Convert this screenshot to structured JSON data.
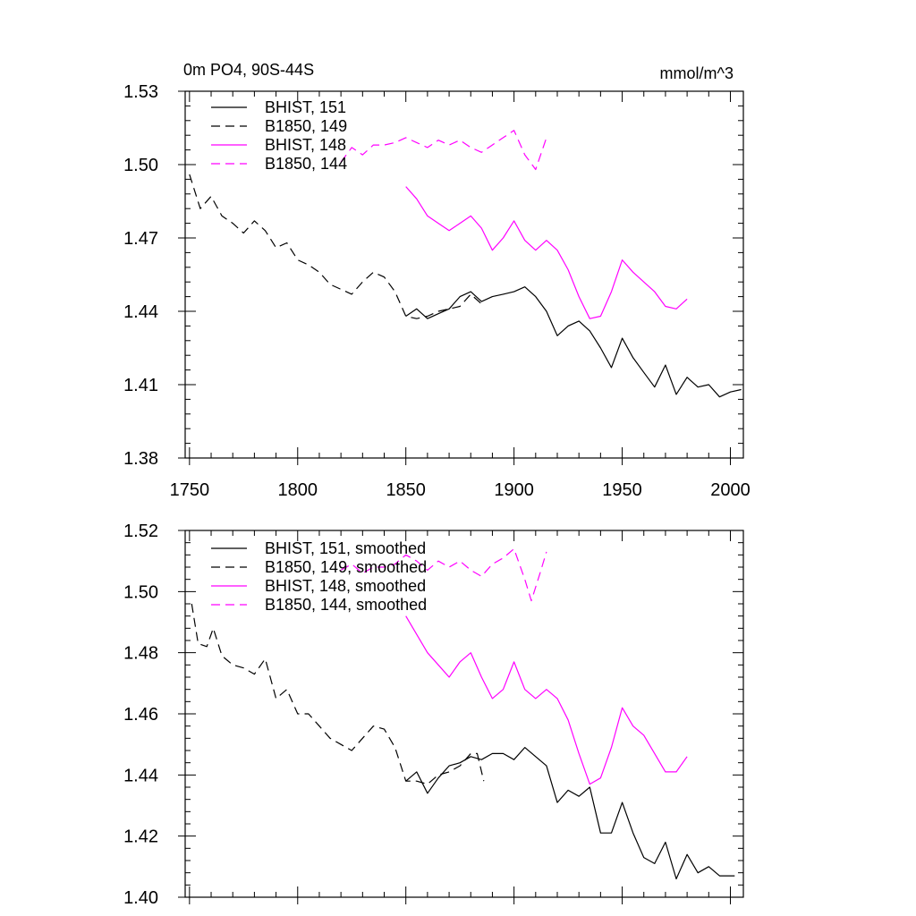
{
  "chart_data": [
    {
      "type": "line",
      "title_left": "0m PO4, 90S-44S",
      "title_right": "mmol/m^3",
      "xlim": [
        1748,
        2006
      ],
      "ylim": [
        1.38,
        1.53
      ],
      "xticks": [
        1750,
        1800,
        1850,
        1900,
        1950,
        2000
      ],
      "yticks": [
        1.38,
        1.41,
        1.44,
        1.47,
        1.5,
        1.53
      ],
      "ytick_labels": [
        "1.38",
        "1.41",
        "1.44",
        "1.47",
        "1.50",
        "1.53"
      ],
      "legend_position": "top-left",
      "series": [
        {
          "name": "BHIST, 151",
          "color": "#000000",
          "dash": "solid",
          "x": [
            1850,
            1855,
            1860,
            1865,
            1870,
            1875,
            1880,
            1885,
            1890,
            1895,
            1900,
            1905,
            1910,
            1915,
            1920,
            1925,
            1930,
            1935,
            1940,
            1945,
            1950,
            1955,
            1960,
            1965,
            1970,
            1975,
            1980,
            1985,
            1990,
            1995,
            2000,
            2005
          ],
          "y": [
            1.438,
            1.441,
            1.437,
            1.439,
            1.441,
            1.446,
            1.448,
            1.444,
            1.446,
            1.447,
            1.448,
            1.45,
            1.446,
            1.44,
            1.43,
            1.434,
            1.436,
            1.432,
            1.425,
            1.417,
            1.429,
            1.421,
            1.415,
            1.409,
            1.418,
            1.406,
            1.413,
            1.409,
            1.41,
            1.405,
            1.407,
            1.408
          ]
        },
        {
          "name": "B1850, 149",
          "color": "#000000",
          "dash": "dashed",
          "x": [
            1750,
            1755,
            1760,
            1765,
            1770,
            1775,
            1780,
            1785,
            1790,
            1795,
            1800,
            1805,
            1810,
            1815,
            1820,
            1825,
            1830,
            1835,
            1840,
            1845,
            1850,
            1855,
            1860,
            1865,
            1870,
            1875,
            1880,
            1885
          ],
          "y": [
            1.496,
            1.482,
            1.487,
            1.479,
            1.476,
            1.472,
            1.477,
            1.473,
            1.466,
            1.468,
            1.461,
            1.459,
            1.456,
            1.451,
            1.449,
            1.447,
            1.452,
            1.456,
            1.454,
            1.448,
            1.438,
            1.437,
            1.438,
            1.44,
            1.441,
            1.442,
            1.447,
            1.443
          ]
        },
        {
          "name": "BHIST, 148",
          "color": "#ff00ff",
          "dash": "solid",
          "x": [
            1850,
            1855,
            1860,
            1865,
            1870,
            1875,
            1880,
            1885,
            1890,
            1895,
            1900,
            1905,
            1910,
            1915,
            1920,
            1925,
            1930,
            1935,
            1940,
            1945,
            1950,
            1955,
            1960,
            1965,
            1970,
            1975,
            1980
          ],
          "y": [
            1.491,
            1.486,
            1.479,
            1.476,
            1.473,
            1.476,
            1.479,
            1.474,
            1.465,
            1.47,
            1.477,
            1.469,
            1.465,
            1.469,
            1.465,
            1.457,
            1.446,
            1.437,
            1.438,
            1.448,
            1.461,
            1.456,
            1.452,
            1.448,
            1.442,
            1.441,
            1.445
          ]
        },
        {
          "name": "B1850, 144",
          "color": "#ff00ff",
          "dash": "dashed",
          "x": [
            1820,
            1825,
            1830,
            1835,
            1840,
            1845,
            1850,
            1855,
            1860,
            1865,
            1870,
            1875,
            1880,
            1885,
            1890,
            1895,
            1900,
            1905,
            1910,
            1915
          ],
          "y": [
            1.501,
            1.507,
            1.504,
            1.508,
            1.508,
            1.509,
            1.511,
            1.509,
            1.507,
            1.51,
            1.508,
            1.51,
            1.507,
            1.505,
            1.508,
            1.511,
            1.514,
            1.504,
            1.498,
            1.511
          ]
        }
      ]
    },
    {
      "type": "line",
      "xlim": [
        1748,
        2006
      ],
      "ylim": [
        1.4,
        1.52
      ],
      "xticks": [
        1750,
        1800,
        1850,
        1900,
        1950,
        2000
      ],
      "yticks": [
        1.4,
        1.42,
        1.44,
        1.46,
        1.48,
        1.5,
        1.52
      ],
      "ytick_labels": [
        "1.40",
        "1.42",
        "1.44",
        "1.46",
        "1.48",
        "1.50",
        "1.52"
      ],
      "legend_position": "top-left",
      "series": [
        {
          "name": "BHIST, 151, smoothed",
          "color": "#000000",
          "dash": "solid",
          "x": [
            1850,
            1855,
            1860,
            1865,
            1870,
            1875,
            1880,
            1885,
            1890,
            1895,
            1900,
            1905,
            1910,
            1915,
            1920,
            1925,
            1930,
            1935,
            1940,
            1945,
            1950,
            1955,
            1960,
            1965,
            1970,
            1975,
            1980,
            1985,
            1990,
            1995,
            2000,
            2002
          ],
          "y": [
            1.438,
            1.441,
            1.434,
            1.439,
            1.443,
            1.444,
            1.446,
            1.445,
            1.447,
            1.447,
            1.445,
            1.449,
            1.446,
            1.443,
            1.431,
            1.435,
            1.433,
            1.436,
            1.421,
            1.421,
            1.431,
            1.421,
            1.413,
            1.411,
            1.418,
            1.406,
            1.414,
            1.408,
            1.41,
            1.407,
            1.407,
            1.407
          ]
        },
        {
          "name": "B1850, 149, smoothed",
          "color": "#000000",
          "dash": "dashed",
          "x": [
            1751,
            1754,
            1758,
            1761,
            1765,
            1770,
            1775,
            1780,
            1785,
            1790,
            1795,
            1800,
            1805,
            1810,
            1815,
            1820,
            1825,
            1830,
            1835,
            1840,
            1845,
            1850,
            1855,
            1860,
            1865,
            1870,
            1875,
            1880,
            1883,
            1886
          ],
          "y": [
            1.496,
            1.483,
            1.482,
            1.488,
            1.479,
            1.476,
            1.475,
            1.473,
            1.478,
            1.465,
            1.468,
            1.46,
            1.46,
            1.456,
            1.452,
            1.45,
            1.448,
            1.452,
            1.456,
            1.455,
            1.449,
            1.438,
            1.438,
            1.437,
            1.44,
            1.441,
            1.443,
            1.447,
            1.447,
            1.438
          ]
        },
        {
          "name": "BHIST, 148, smoothed",
          "color": "#ff00ff",
          "dash": "solid",
          "x": [
            1850,
            1855,
            1860,
            1865,
            1870,
            1875,
            1880,
            1885,
            1890,
            1895,
            1900,
            1905,
            1910,
            1915,
            1920,
            1925,
            1930,
            1935,
            1940,
            1945,
            1950,
            1955,
            1960,
            1965,
            1970,
            1975,
            1980
          ],
          "y": [
            1.492,
            1.486,
            1.48,
            1.476,
            1.472,
            1.477,
            1.48,
            1.472,
            1.465,
            1.468,
            1.477,
            1.468,
            1.465,
            1.468,
            1.465,
            1.458,
            1.447,
            1.437,
            1.439,
            1.449,
            1.462,
            1.456,
            1.453,
            1.447,
            1.441,
            1.441,
            1.446
          ]
        },
        {
          "name": "B1850, 144, smoothed",
          "color": "#ff00ff",
          "dash": "dashed",
          "x": [
            1820,
            1825,
            1830,
            1835,
            1840,
            1845,
            1850,
            1855,
            1860,
            1865,
            1870,
            1875,
            1880,
            1885,
            1890,
            1895,
            1900,
            1905,
            1908,
            1912,
            1915
          ],
          "y": [
            1.507,
            1.509,
            1.506,
            1.508,
            1.508,
            1.509,
            1.512,
            1.51,
            1.507,
            1.51,
            1.508,
            1.51,
            1.507,
            1.505,
            1.509,
            1.511,
            1.514,
            1.504,
            1.497,
            1.506,
            1.513
          ]
        }
      ]
    }
  ]
}
